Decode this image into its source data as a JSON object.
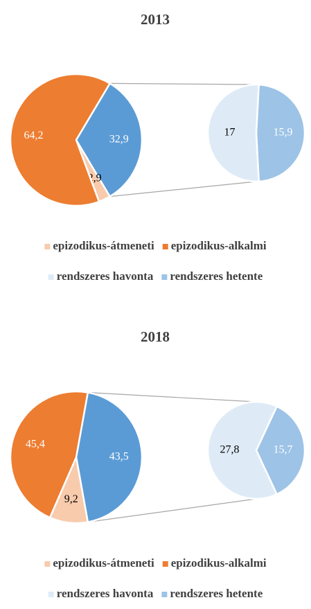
{
  "chart_data": [
    {
      "type": "pie-of-pie",
      "title": "2013",
      "categories": [
        "epizodikus-átmeneti",
        "epizodikus-alkalmi",
        null
      ],
      "values": [
        2.9,
        64.2,
        32.9
      ],
      "value_labels": [
        "2,9",
        "64,2",
        "32,9"
      ],
      "colors": [
        "#f8cbad",
        "#ed7d31",
        "#5b9bd5"
      ],
      "secondary": {
        "categories": [
          "rendszeres havonta",
          "rendszeres hetente"
        ],
        "values": [
          17,
          15.9
        ],
        "value_labels": [
          "17",
          "15,9"
        ],
        "colors": [
          "#deebf7",
          "#9dc3e6"
        ]
      }
    },
    {
      "type": "pie-of-pie",
      "title": "2018",
      "categories": [
        "epizodikus-átmeneti",
        "epizodikus-alkalmi",
        null
      ],
      "values": [
        9.2,
        45.4,
        43.5
      ],
      "value_labels": [
        "9,2",
        "45,4",
        "43,5"
      ],
      "colors": [
        "#f8cbad",
        "#ed7d31",
        "#5b9bd5"
      ],
      "secondary": {
        "categories": [
          "rendszeres havonta",
          "rendszeres hetente"
        ],
        "values": [
          27.8,
          15.7
        ],
        "value_labels": [
          "27,8",
          "15,7"
        ],
        "colors": [
          "#deebf7",
          "#9dc3e6"
        ]
      }
    }
  ]
}
